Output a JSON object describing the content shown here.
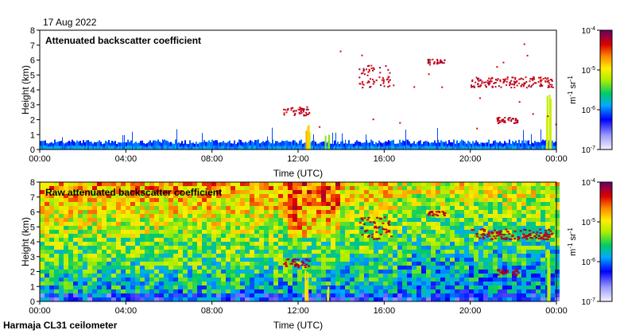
{
  "date": "17 Aug 2022",
  "footer": "Harmaja CL31 ceilometer",
  "chart_data": [
    {
      "type": "heatmap",
      "title": "Attenuated backscatter coefficient",
      "xlabel": "Time (UTC)",
      "ylabel": "Height (km)",
      "x_ticks": [
        "00:00",
        "04:00",
        "08:00",
        "12:00",
        "16:00",
        "20:00",
        "00:00"
      ],
      "x_tick_hours": [
        0,
        4,
        8,
        12,
        16,
        20,
        24
      ],
      "y_ticks": [
        "0",
        "1",
        "2",
        "3",
        "4",
        "5",
        "6",
        "7",
        "8"
      ],
      "ylim": [
        0,
        8
      ],
      "xlim_hours": [
        0,
        24
      ],
      "colorbar": {
        "label_base": "m",
        "label_exp1": "-1",
        "label_mid": " sr",
        "label_exp2": "-1",
        "ticks": [
          {
            "base": "10",
            "exp": "-4",
            "log": -4
          },
          {
            "base": "10",
            "exp": "-5",
            "log": -5
          },
          {
            "base": "10",
            "exp": "-6",
            "log": -6
          },
          {
            "base": "10",
            "exp": "-7",
            "log": -7
          }
        ],
        "range_log": [
          -7,
          -4
        ]
      },
      "features": {
        "boundary_layer_km": 0.4,
        "cloud_layers": [
          {
            "t0": 11.3,
            "t1": 12.5,
            "h0": 2.3,
            "h1": 2.9
          },
          {
            "t0": 14.8,
            "t1": 16.3,
            "h0": 4.2,
            "h1": 5.7
          },
          {
            "t0": 18.0,
            "t1": 18.8,
            "h0": 5.8,
            "h1": 6.1
          },
          {
            "t0": 20.0,
            "t1": 23.8,
            "h0": 4.2,
            "h1": 4.9
          },
          {
            "t0": 21.2,
            "t1": 22.2,
            "h0": 1.8,
            "h1": 2.2
          }
        ],
        "rain_columns": [
          {
            "t": 12.4,
            "h1": 2.3
          },
          {
            "t": 13.3,
            "h1": 1.0
          },
          {
            "t": 23.6,
            "h1": 4.0
          }
        ]
      }
    },
    {
      "type": "heatmap",
      "title": "Raw attenuated backscatter coefficient",
      "xlabel": "Time (UTC)",
      "ylabel": "Height (km)",
      "x_ticks": [
        "00:00",
        "04:00",
        "08:00",
        "12:00",
        "16:00",
        "20:00",
        "00:00"
      ],
      "x_tick_hours": [
        0,
        4,
        8,
        12,
        16,
        20,
        24
      ],
      "y_ticks": [
        "0",
        "1",
        "2",
        "3",
        "4",
        "5",
        "6",
        "7",
        "8"
      ],
      "ylim": [
        0,
        8
      ],
      "xlim_hours": [
        0,
        24
      ],
      "colorbar": {
        "label_base": "m",
        "label_exp1": "-1",
        "label_mid": " sr",
        "label_exp2": "-1",
        "ticks": [
          {
            "base": "10",
            "exp": "-4",
            "log": -4
          },
          {
            "base": "10",
            "exp": "-5",
            "log": -5
          },
          {
            "base": "10",
            "exp": "-6",
            "log": -6
          },
          {
            "base": "10",
            "exp": "-7",
            "log": -7
          }
        ],
        "range_log": [
          -7,
          -4
        ]
      }
    }
  ]
}
